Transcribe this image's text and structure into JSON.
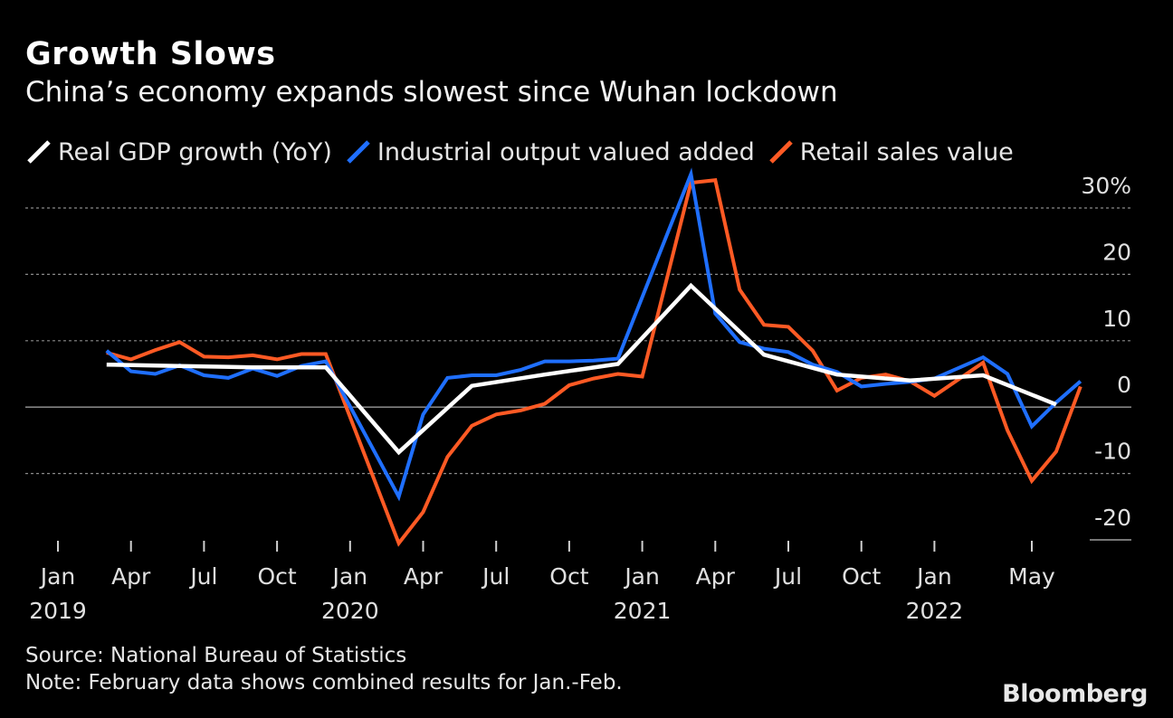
{
  "title": "Growth Slows",
  "subtitle": "China’s economy expands slowest since Wuhan lockdown",
  "legend": [
    {
      "label": "Real GDP growth (YoY)",
      "color": "#ffffff"
    },
    {
      "label": "Industrial output valued added",
      "color": "#1f6fff"
    },
    {
      "label": "Retail sales value",
      "color": "#ff5a24"
    }
  ],
  "footer": {
    "source": "Source: National Bureau of Statistics",
    "note": "Note: February data shows combined results for Jan.-Feb."
  },
  "brand": "Bloomberg",
  "chart_data": {
    "type": "line",
    "title": "Growth Slows",
    "subtitle": "China’s economy expands slowest since Wuhan lockdown",
    "xlabel": "",
    "ylabel": "",
    "ylim": [
      -20,
      30
    ],
    "yticks": [
      {
        "value": 30,
        "label": "30%"
      },
      {
        "value": 20,
        "label": "20"
      },
      {
        "value": 10,
        "label": "10"
      },
      {
        "value": 0,
        "label": "0"
      },
      {
        "value": -10,
        "label": "-10"
      },
      {
        "value": -20,
        "label": "-20"
      }
    ],
    "xticks": [
      {
        "index": 0,
        "label": "Jan",
        "year": "2019"
      },
      {
        "index": 3,
        "label": "Apr",
        "year": ""
      },
      {
        "index": 6,
        "label": "Jul",
        "year": ""
      },
      {
        "index": 9,
        "label": "Oct",
        "year": ""
      },
      {
        "index": 12,
        "label": "Jan",
        "year": "2020"
      },
      {
        "index": 15,
        "label": "Apr",
        "year": ""
      },
      {
        "index": 18,
        "label": "Jul",
        "year": ""
      },
      {
        "index": 21,
        "label": "Oct",
        "year": ""
      },
      {
        "index": 24,
        "label": "Jan",
        "year": "2021"
      },
      {
        "index": 27,
        "label": "Apr",
        "year": ""
      },
      {
        "index": 30,
        "label": "Jul",
        "year": ""
      },
      {
        "index": 33,
        "label": "Oct",
        "year": ""
      },
      {
        "index": 36,
        "label": "Jan",
        "year": "2022"
      },
      {
        "index": 40,
        "label": "May",
        "year": ""
      }
    ],
    "grid": true,
    "legend_position": "top-left",
    "series": [
      {
        "name": "Real GDP growth (YoY)",
        "color": "#ffffff",
        "points": [
          [
            2,
            6.4
          ],
          [
            5,
            6.2
          ],
          [
            8,
            6.0
          ],
          [
            11,
            6.0
          ],
          [
            14,
            -6.8
          ],
          [
            17,
            3.2
          ],
          [
            20,
            4.9
          ],
          [
            23,
            6.5
          ],
          [
            26,
            18.3
          ],
          [
            29,
            7.9
          ],
          [
            32,
            4.9
          ],
          [
            35,
            4.0
          ],
          [
            38,
            4.8
          ],
          [
            41,
            0.4
          ]
        ]
      },
      {
        "name": "Industrial output valued added",
        "color": "#1f6fff",
        "points": [
          [
            2,
            8.5
          ],
          [
            3,
            5.4
          ],
          [
            4,
            5.0
          ],
          [
            5,
            6.3
          ],
          [
            6,
            4.8
          ],
          [
            7,
            4.4
          ],
          [
            8,
            5.8
          ],
          [
            9,
            4.7
          ],
          [
            10,
            6.2
          ],
          [
            11,
            6.9
          ],
          [
            14,
            -13.5
          ],
          [
            15,
            -1.1
          ],
          [
            16,
            4.4
          ],
          [
            17,
            4.8
          ],
          [
            18,
            4.8
          ],
          [
            19,
            5.6
          ],
          [
            20,
            6.9
          ],
          [
            21,
            6.9
          ],
          [
            22,
            7.0
          ],
          [
            23,
            7.3
          ],
          [
            26,
            35.1
          ],
          [
            27,
            14.1
          ],
          [
            28,
            9.8
          ],
          [
            29,
            8.8
          ],
          [
            30,
            8.3
          ],
          [
            31,
            6.4
          ],
          [
            32,
            5.3
          ],
          [
            33,
            3.1
          ],
          [
            34,
            3.5
          ],
          [
            35,
            3.8
          ],
          [
            36,
            4.3
          ],
          [
            38,
            7.5
          ],
          [
            39,
            5.0
          ],
          [
            40,
            -2.9
          ],
          [
            41,
            0.7
          ],
          [
            42,
            3.9
          ]
        ]
      },
      {
        "name": "Retail sales value",
        "color": "#ff5a24",
        "points": [
          [
            2,
            8.2
          ],
          [
            3,
            7.2
          ],
          [
            4,
            8.6
          ],
          [
            5,
            9.8
          ],
          [
            6,
            7.6
          ],
          [
            7,
            7.5
          ],
          [
            8,
            7.8
          ],
          [
            9,
            7.2
          ],
          [
            10,
            8.0
          ],
          [
            11,
            8.0
          ],
          [
            14,
            -20.5
          ],
          [
            15,
            -15.8
          ],
          [
            16,
            -7.5
          ],
          [
            17,
            -2.8
          ],
          [
            18,
            -1.1
          ],
          [
            19,
            -0.5
          ],
          [
            20,
            0.5
          ],
          [
            21,
            3.3
          ],
          [
            22,
            4.3
          ],
          [
            23,
            5.0
          ],
          [
            24,
            4.6
          ],
          [
            26,
            33.8
          ],
          [
            27,
            34.2
          ],
          [
            28,
            17.7
          ],
          [
            29,
            12.4
          ],
          [
            30,
            12.1
          ],
          [
            31,
            8.5
          ],
          [
            32,
            2.5
          ],
          [
            33,
            4.4
          ],
          [
            34,
            4.9
          ],
          [
            35,
            3.9
          ],
          [
            36,
            1.7
          ],
          [
            38,
            6.7
          ],
          [
            39,
            -3.5
          ],
          [
            40,
            -11.1
          ],
          [
            41,
            -6.7
          ],
          [
            42,
            3.1
          ]
        ]
      }
    ]
  }
}
